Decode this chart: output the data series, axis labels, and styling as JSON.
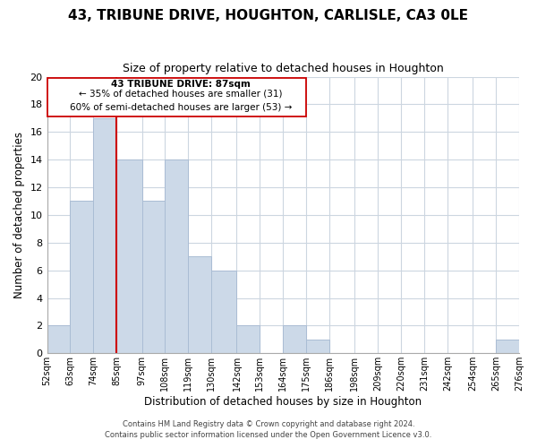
{
  "title": "43, TRIBUNE DRIVE, HOUGHTON, CARLISLE, CA3 0LE",
  "subtitle": "Size of property relative to detached houses in Houghton",
  "xlabel": "Distribution of detached houses by size in Houghton",
  "ylabel": "Number of detached properties",
  "bar_color": "#ccd9e8",
  "bar_edge_color": "#aabdd4",
  "vline_x": 85,
  "vline_color": "#cc0000",
  "bins": [
    52,
    63,
    74,
    85,
    97,
    108,
    119,
    130,
    142,
    153,
    164,
    175,
    186,
    198,
    209,
    220,
    231,
    242,
    254,
    265,
    276
  ],
  "bin_labels": [
    "52sqm",
    "63sqm",
    "74sqm",
    "85sqm",
    "97sqm",
    "108sqm",
    "119sqm",
    "130sqm",
    "142sqm",
    "153sqm",
    "164sqm",
    "175sqm",
    "186sqm",
    "198sqm",
    "209sqm",
    "220sqm",
    "231sqm",
    "242sqm",
    "254sqm",
    "265sqm",
    "276sqm"
  ],
  "counts": [
    2,
    11,
    17,
    14,
    11,
    14,
    7,
    6,
    2,
    0,
    2,
    1,
    0,
    0,
    0,
    0,
    0,
    0,
    0,
    1
  ],
  "ylim": [
    0,
    20
  ],
  "yticks": [
    0,
    2,
    4,
    6,
    8,
    10,
    12,
    14,
    16,
    18,
    20
  ],
  "annotation_title": "43 TRIBUNE DRIVE: 87sqm",
  "annotation_line1": "← 35% of detached houses are smaller (31)",
  "annotation_line2": "60% of semi-detached houses are larger (53) →",
  "footer1": "Contains HM Land Registry data © Crown copyright and database right 2024.",
  "footer2": "Contains public sector information licensed under the Open Government Licence v3.0.",
  "background_color": "#ffffff",
  "grid_color": "#ccd6e0"
}
